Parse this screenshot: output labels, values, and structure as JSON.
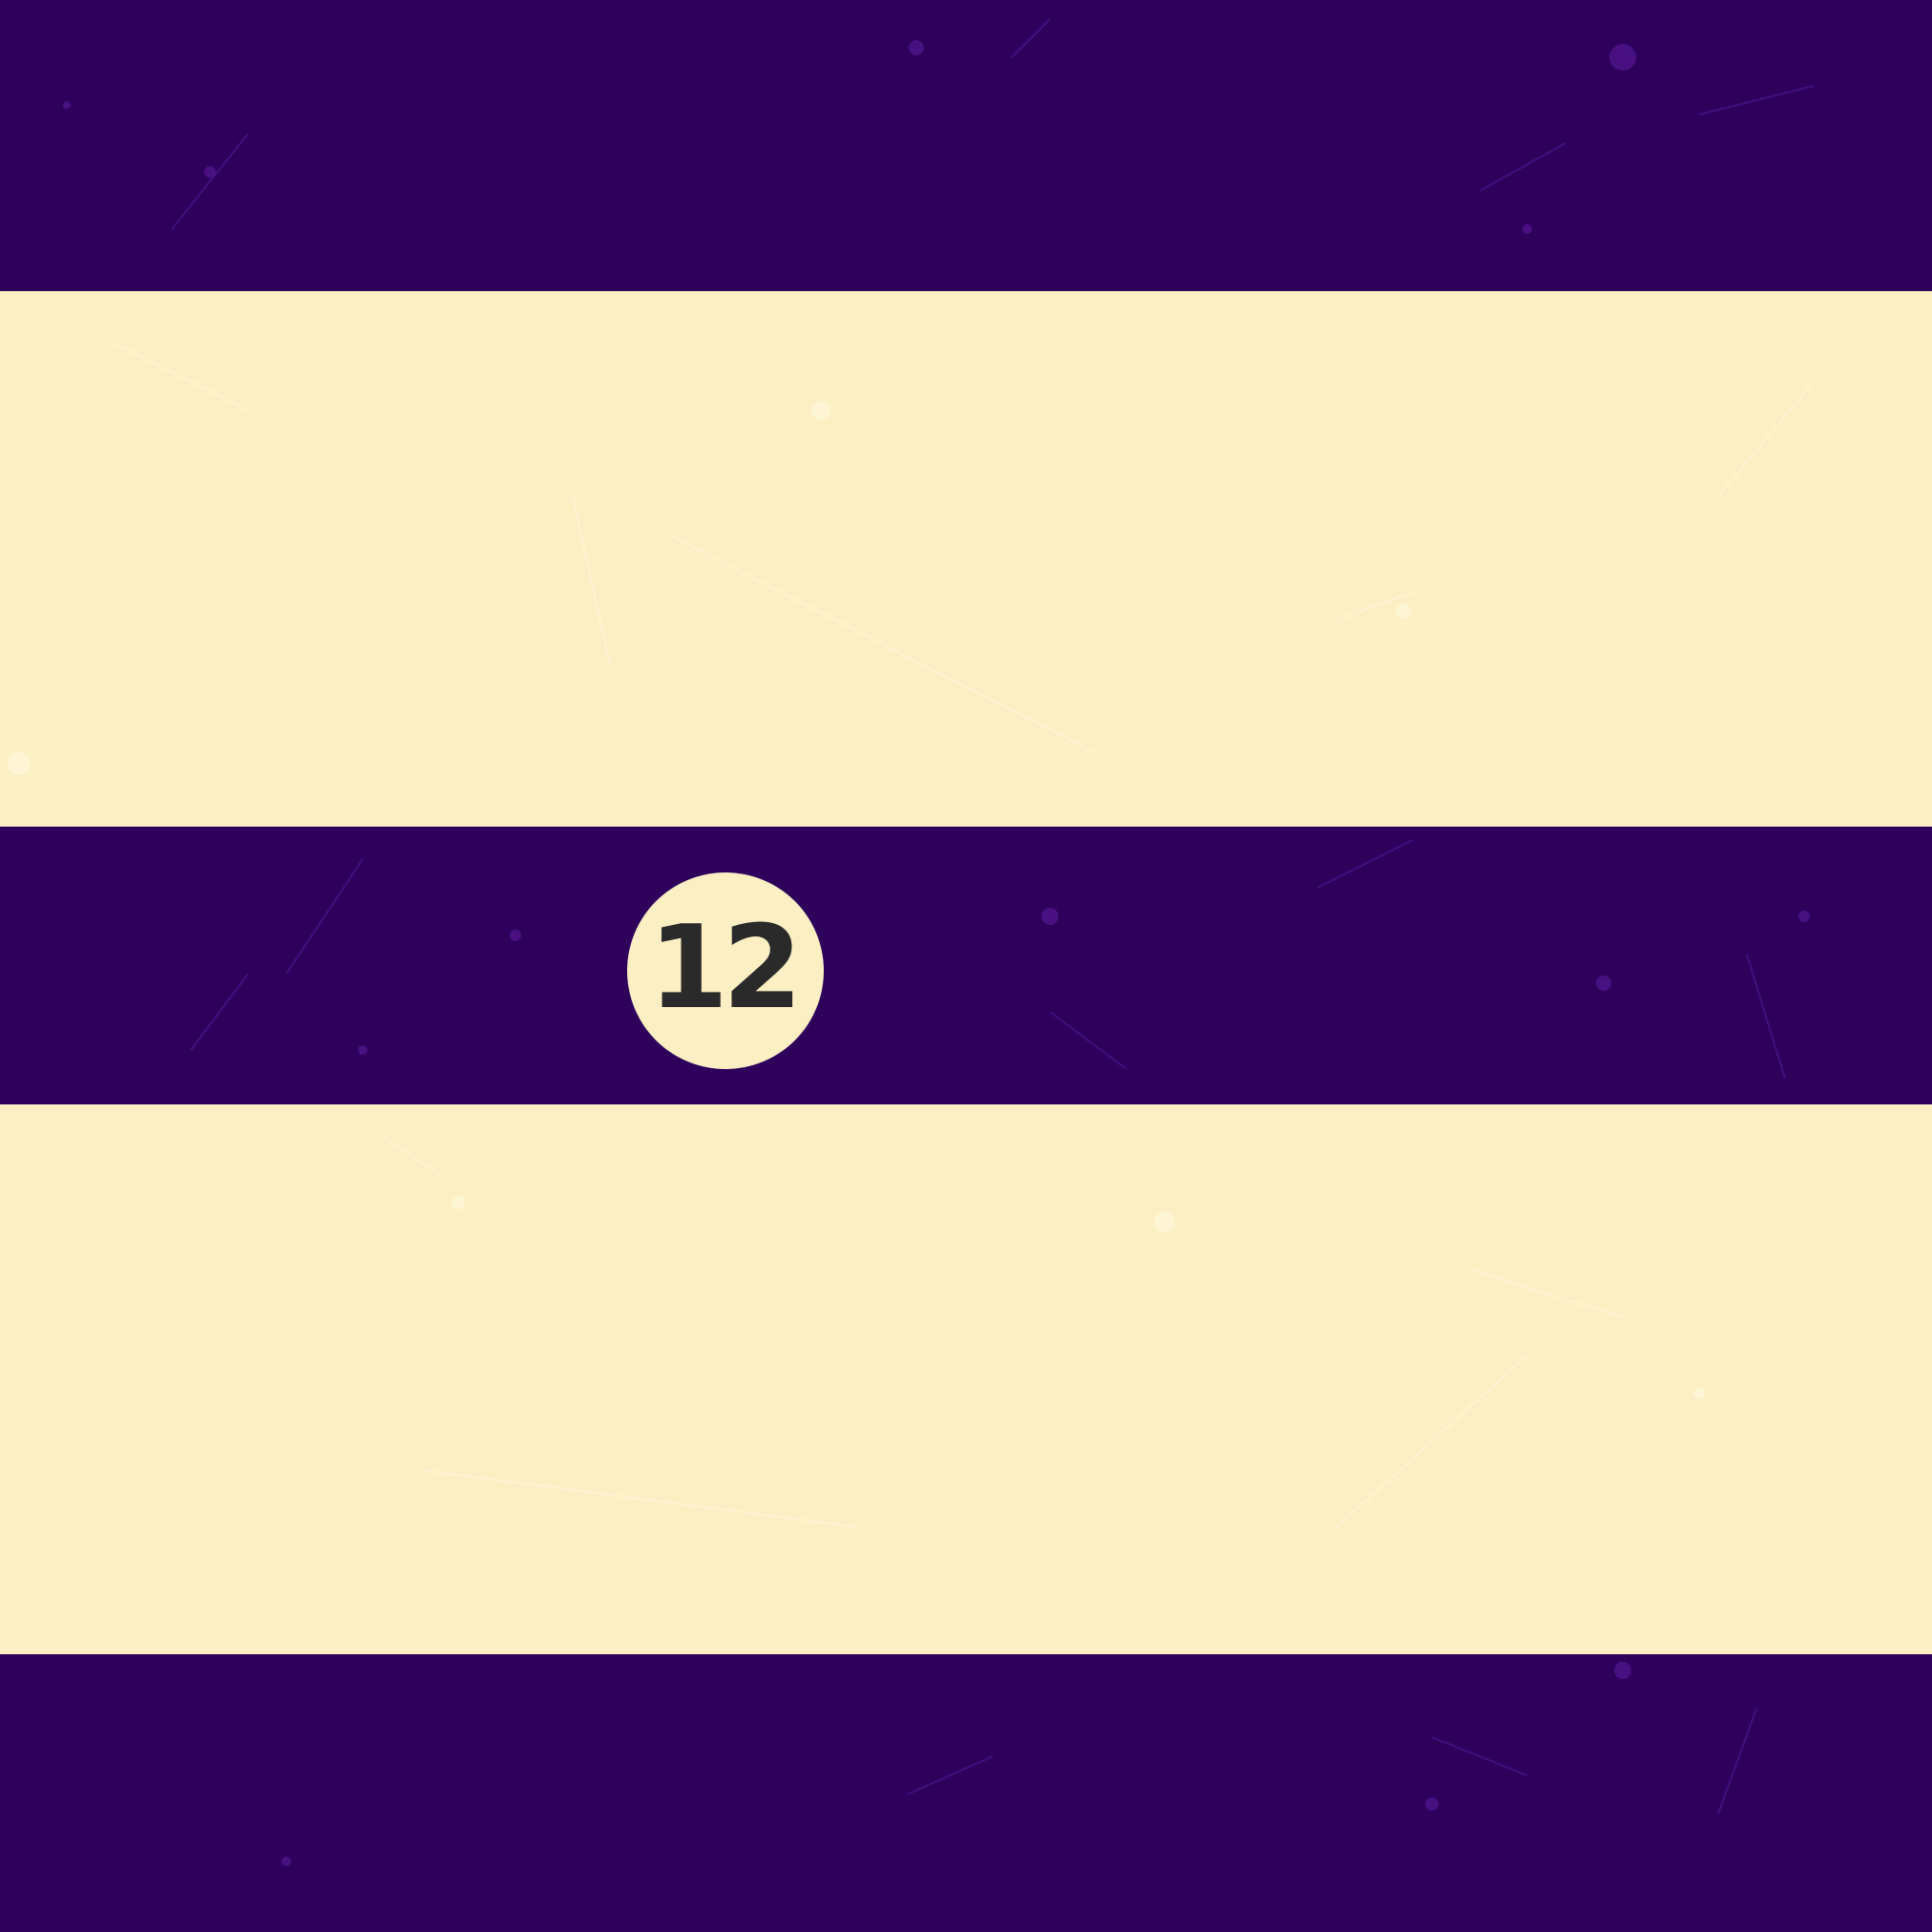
{
  "ball": {
    "number": "12",
    "colors": {
      "stripe": "#2e005c",
      "body": "#fbefc3",
      "number_ink": "#2a2a2a",
      "scratch_purple": "#5a1a9a",
      "scratch_cream": "#fff6d8"
    }
  }
}
